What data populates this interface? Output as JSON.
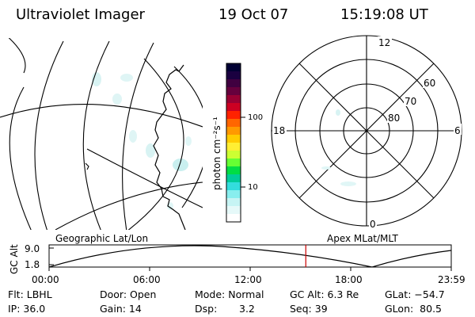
{
  "header": {
    "title": "Ultraviolet Imager",
    "date": "19 Oct 07",
    "time": "15:19:08 UT"
  },
  "colorbar": {
    "label": "photon cm⁻²s⁻¹",
    "ticks": [
      "100",
      "10"
    ],
    "colors": [
      "#000033",
      "#1a0040",
      "#400040",
      "#66003d",
      "#990033",
      "#cc0022",
      "#ff2200",
      "#ff6600",
      "#ff9900",
      "#ffcc00",
      "#ffee33",
      "#ccff33",
      "#66ff33",
      "#00dd44",
      "#00cc99",
      "#33dddd",
      "#88eeee",
      "#c6f4f4",
      "#e6f9f9",
      "#ffffff"
    ]
  },
  "polar_plot": {
    "mlt_labels": {
      "top": "12",
      "left": "18",
      "right": "6",
      "bottom": "0"
    },
    "lat_labels": [
      "60",
      "70",
      "80"
    ]
  },
  "timeline": {
    "left_label": "Geographic Lat/Lon",
    "right_label": "Apex MLat/MLT",
    "axis_label": "GC Alt",
    "y_max_label": "9.0",
    "y_min_label": "1.8",
    "x_ticks": [
      "00:00",
      "06:00",
      "12:00",
      "18:00",
      "23:59"
    ],
    "marker_color": "#cc0000",
    "current_time_hours": 15.32
  },
  "info_panel": {
    "row1": [
      "Flt: LBHL",
      "Door: Open",
      "Mode: Normal",
      "GC Alt: 6.3 Re",
      "GLat: −54.7"
    ],
    "row2": [
      "IP: 36.0",
      "Gain: 14",
      "Dsp:",
      "3.2",
      "Seq: 39",
      "GLon:  80.5"
    ]
  }
}
